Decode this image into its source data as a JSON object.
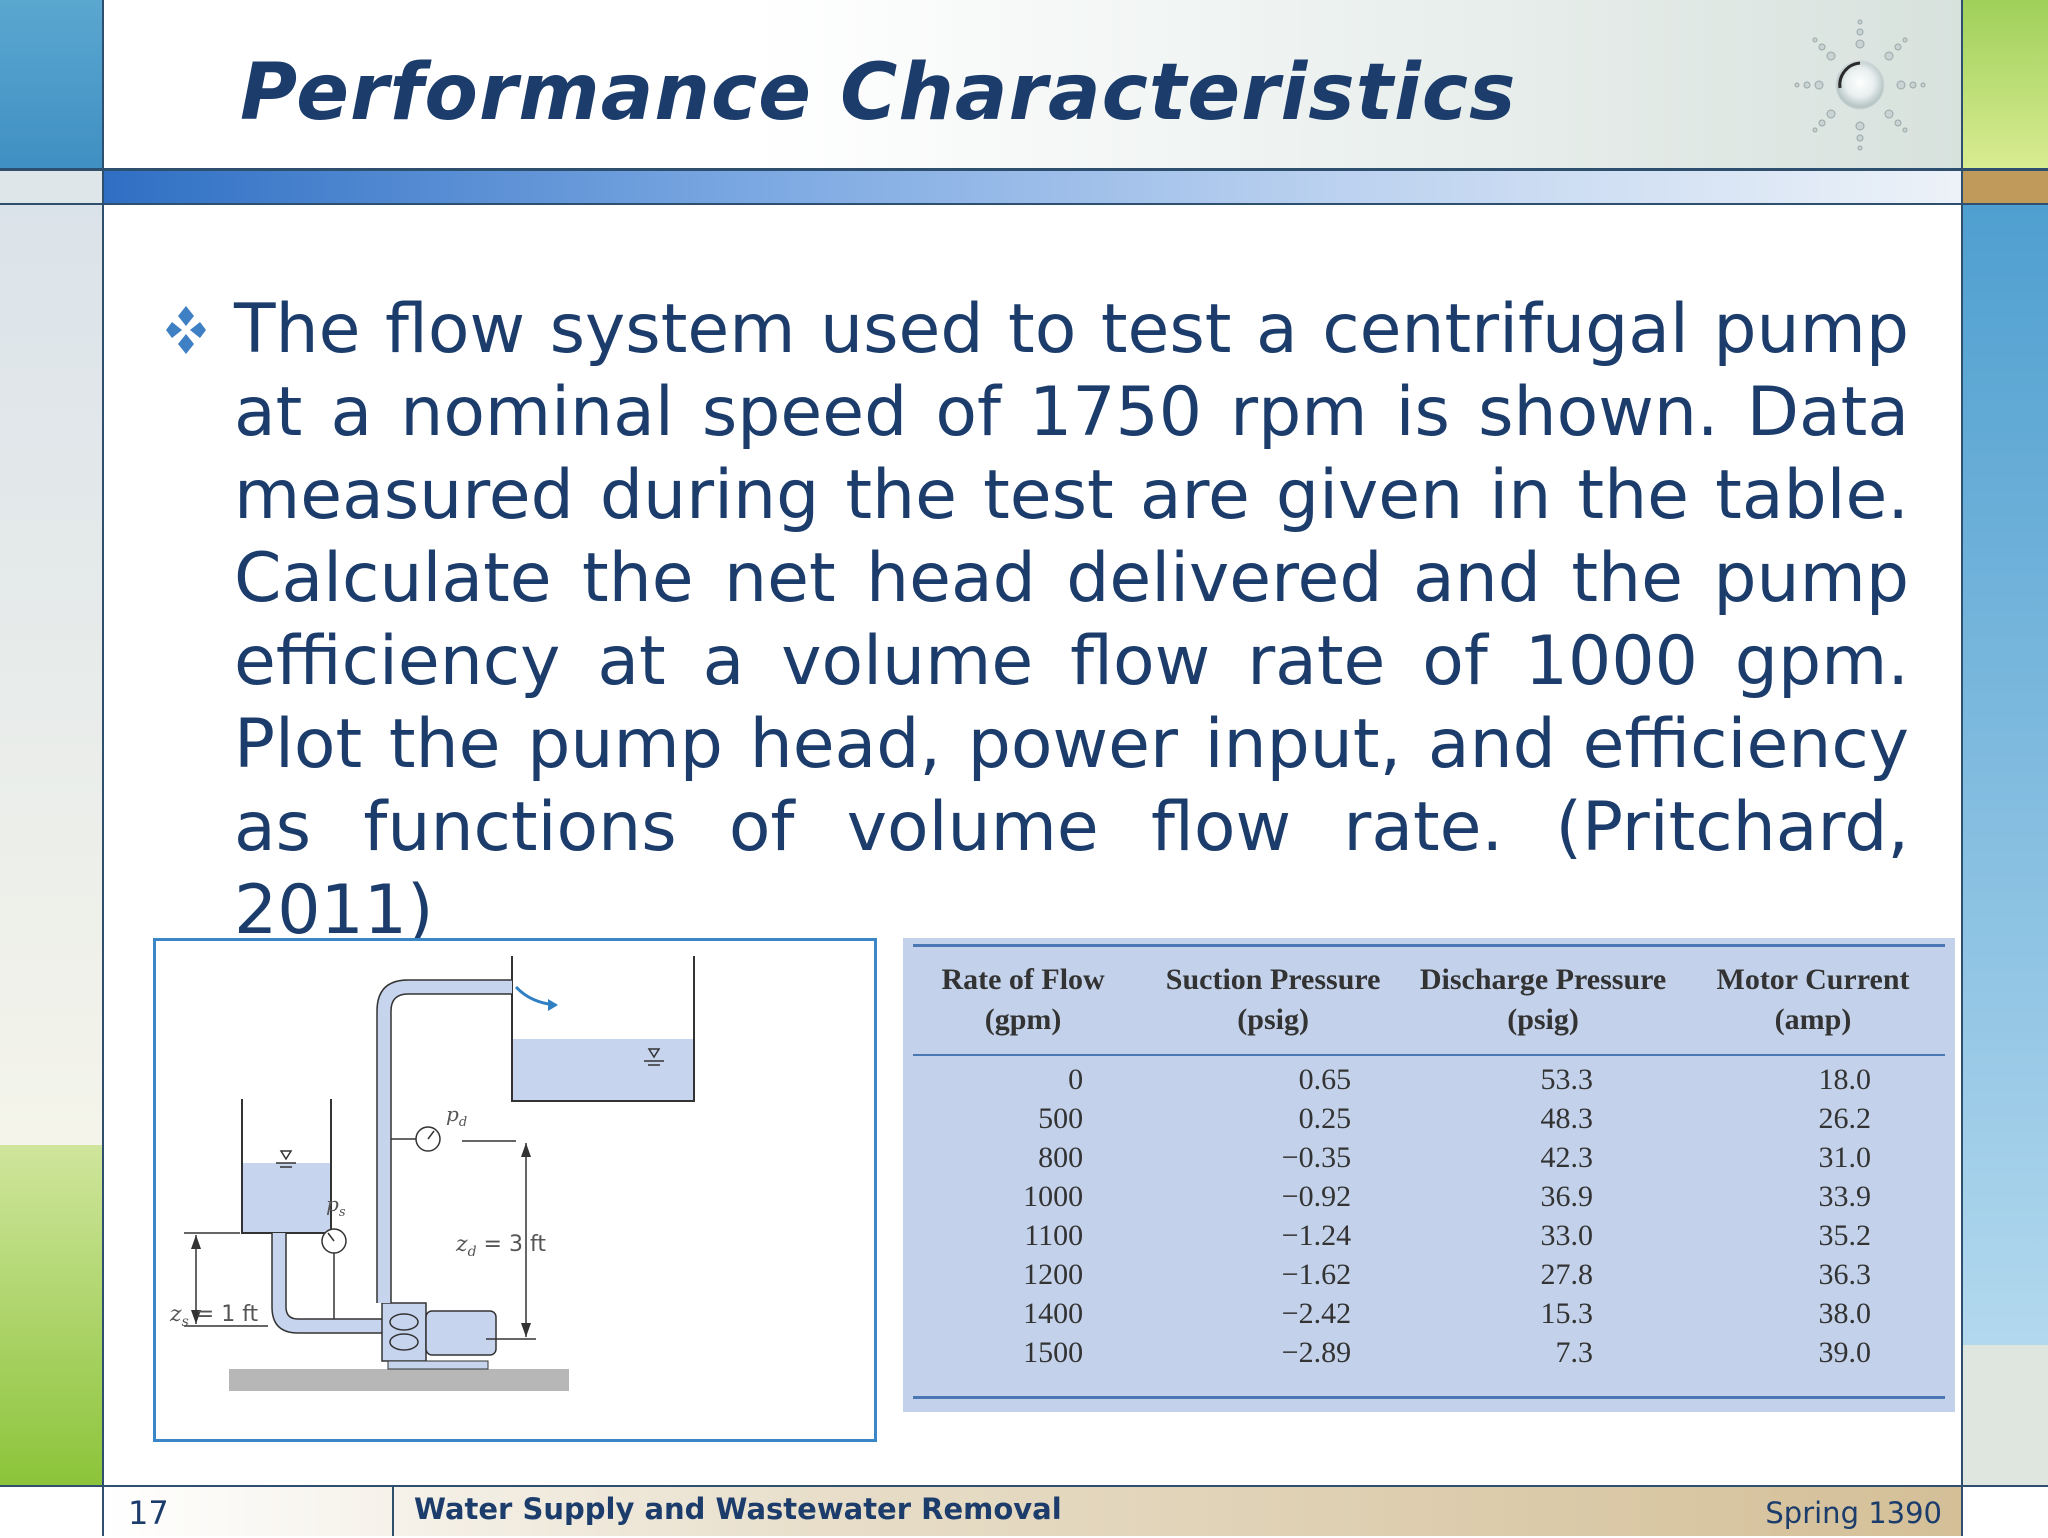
{
  "slide": {
    "title": "Performance Characteristics",
    "body": "The flow system used to test a centrifugal pump at a nominal speed of 1750 rpm is shown. Data measured during the test are given in the table. Calculate the net head delivered and the pump efficiency at a volume flow rate of 1000 gpm. Plot the pump head, power input, and efficiency as functions of volume flow rate. (Pritchard, 2011)"
  },
  "diagram": {
    "label_pd": "p",
    "label_pd_sub": "d",
    "label_ps": "p",
    "label_ps_sub": "s",
    "label_zd": "z",
    "label_zd_sub": "d",
    "label_zd_val": " = 3 ft",
    "label_zs": "z",
    "label_zs_sub": "s",
    "label_zs_val": " = 1 ft"
  },
  "table": {
    "headers": [
      {
        "line1": "Rate of Flow",
        "line2": "(gpm)"
      },
      {
        "line1": "Suction Pressure",
        "line2": "(psig)"
      },
      {
        "line1": "Discharge Pressure",
        "line2": "(psig)"
      },
      {
        "line1": "Motor Current",
        "line2": "(amp)"
      }
    ],
    "rows": [
      [
        "0",
        "0.65",
        "53.3",
        "18.0"
      ],
      [
        "500",
        "0.25",
        "48.3",
        "26.2"
      ],
      [
        "800",
        "−0.35",
        "42.3",
        "31.0"
      ],
      [
        "1000",
        "−0.92",
        "36.9",
        "33.9"
      ],
      [
        "1100",
        "−1.24",
        "33.0",
        "35.2"
      ],
      [
        "1200",
        "−1.62",
        "27.8",
        "36.3"
      ],
      [
        "1400",
        "−2.42",
        "15.3",
        "38.0"
      ],
      [
        "1500",
        "−2.89",
        "7.3",
        "39.0"
      ]
    ]
  },
  "footer": {
    "page_number": "17",
    "course": "Water Supply and Wastewater Removal",
    "term": "Spring 1390"
  },
  "colors": {
    "title": "#1c3d6c",
    "accent_blue": "#3b86c6",
    "table_bg": "#c3d2ea",
    "water": "#c6d4ee"
  }
}
